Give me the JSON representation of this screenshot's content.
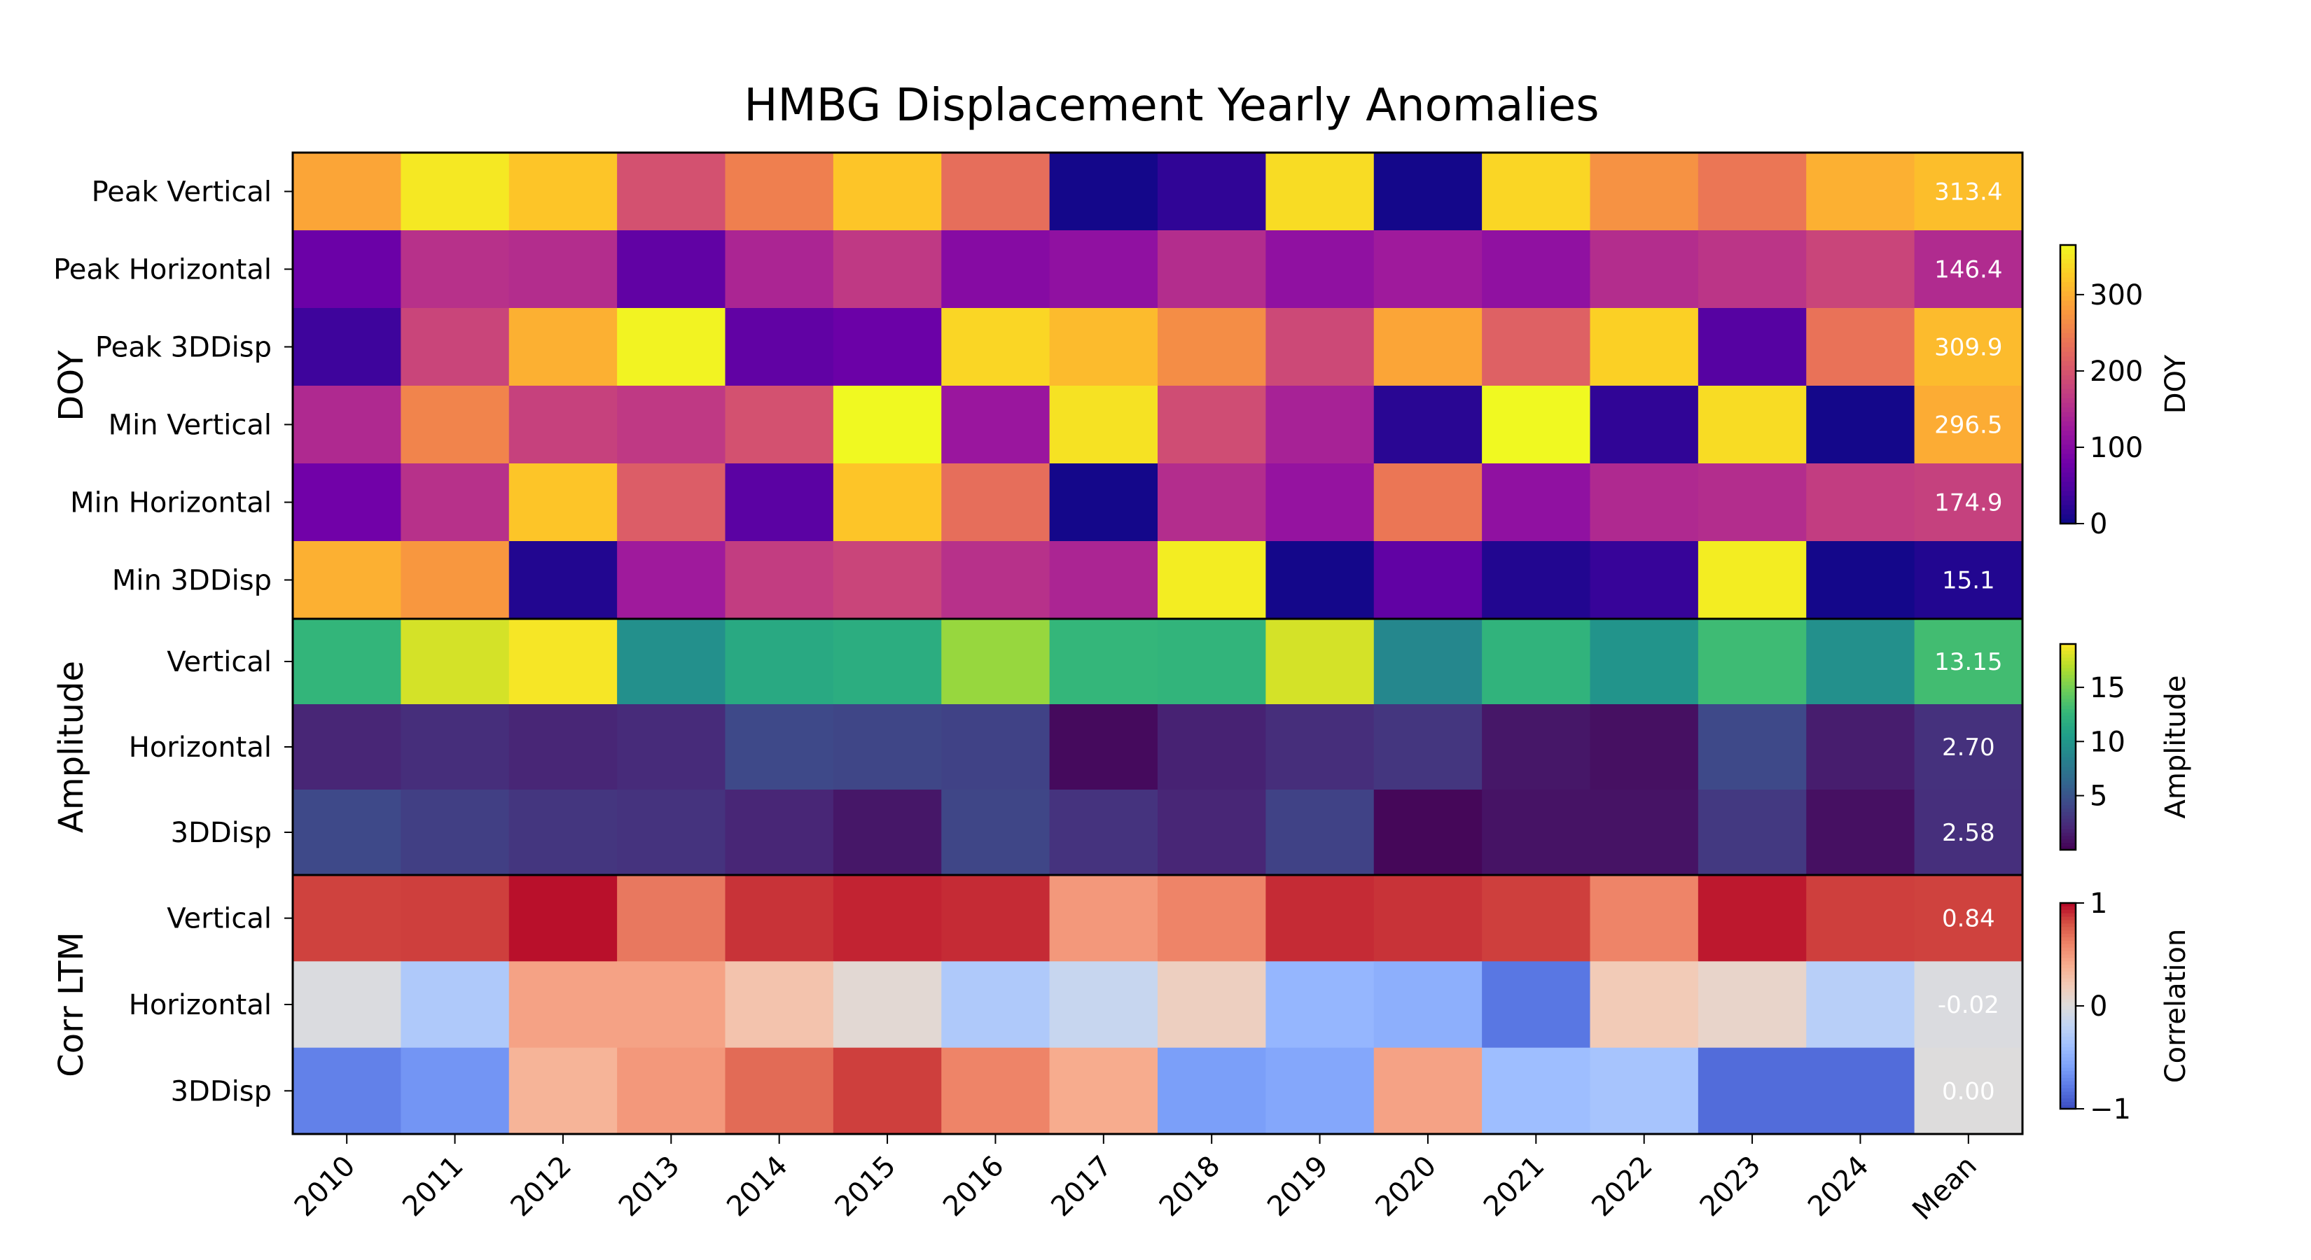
{
  "chart_data": {
    "type": "heatmap",
    "title": "HMBG Displacement Yearly Anomalies",
    "columns": [
      "2010",
      "2011",
      "2012",
      "2013",
      "2014",
      "2015",
      "2016",
      "2017",
      "2018",
      "2019",
      "2020",
      "2021",
      "2022",
      "2023",
      "2024",
      "Mean"
    ],
    "blocks": [
      {
        "label": "DOY",
        "colormap": "plasma",
        "range": [
          0,
          365
        ],
        "colorbar_label": "DOY",
        "colorbar_ticks": [
          "0",
          "100",
          "200",
          "300"
        ],
        "colorbar_tick_values": [
          0,
          100,
          200,
          300
        ],
        "rows": [
          {
            "label": "Peak Vertical",
            "values": [
              290,
              350,
              320,
              195,
              250,
              320,
              230,
              5,
              25,
              340,
              5,
              335,
              270,
              240,
              300,
              313.4
            ],
            "mean_text": "313.4"
          },
          {
            "label": "Peak Horizontal",
            "values": [
              75,
              155,
              150,
              65,
              140,
              165,
              100,
              110,
              150,
              110,
              125,
              110,
              150,
              160,
              180,
              146.4
            ],
            "mean_text": "146.4"
          },
          {
            "label": "Peak 3DDisp",
            "values": [
              35,
              180,
              300,
              360,
              65,
              75,
              335,
              310,
              265,
              185,
              290,
              215,
              330,
              55,
              235,
              309.9
            ],
            "mean_text": "309.9"
          },
          {
            "label": "Min Vertical",
            "values": [
              145,
              255,
              175,
              165,
              195,
              365,
              120,
              345,
              190,
              135,
              20,
              365,
              25,
              340,
              5,
              296.5
            ],
            "mean_text": "296.5"
          },
          {
            "label": "Min Horizontal",
            "values": [
              80,
              155,
              320,
              210,
              60,
              320,
              230,
              5,
              150,
              115,
              240,
              110,
              145,
              150,
              170,
              174.9
            ],
            "mean_text": "174.9"
          },
          {
            "label": "Min 3DDisp",
            "values": [
              300,
              275,
              15,
              125,
              170,
              180,
              155,
              140,
              355,
              5,
              65,
              15,
              30,
              355,
              5,
              15.1
            ],
            "mean_text": "15.1"
          }
        ]
      },
      {
        "label": "Amplitude",
        "colormap": "viridis",
        "range": [
          0,
          19
        ],
        "colorbar_label": "Amplitude",
        "colorbar_ticks": [
          "5",
          "10",
          "15"
        ],
        "colorbar_tick_values": [
          5,
          10,
          15
        ],
        "rows": [
          {
            "label": "Vertical",
            "values": [
              12.5,
              17.8,
              18.8,
              9.5,
              11.5,
              11.8,
              16.0,
              12.6,
              12.4,
              17.8,
              8.8,
              12.3,
              9.8,
              13.0,
              9.5,
              13.15
            ],
            "mean_text": "13.15"
          },
          {
            "label": "Horizontal",
            "values": [
              2.0,
              2.5,
              2.0,
              2.3,
              4.2,
              4.0,
              3.8,
              0.5,
              1.8,
              2.5,
              3.0,
              1.2,
              0.8,
              4.2,
              1.5,
              2.7
            ],
            "mean_text": "2.70"
          },
          {
            "label": "3DDisp",
            "values": [
              4.2,
              3.6,
              3.0,
              2.8,
              2.0,
              1.2,
              4.0,
              2.8,
              2.0,
              3.8,
              0.3,
              1.0,
              1.0,
              3.2,
              0.8,
              2.58
            ],
            "mean_text": "2.58"
          }
        ]
      },
      {
        "label": "Corr LTM",
        "colormap": "coolwarm",
        "range": [
          -1,
          1
        ],
        "colorbar_label": "Correlation",
        "colorbar_ticks": [
          "−1",
          "0",
          "1"
        ],
        "colorbar_tick_values": [
          -1,
          0,
          1
        ],
        "rows": [
          {
            "label": "Vertical",
            "values": [
              0.84,
              0.85,
              0.97,
              0.65,
              0.88,
              0.92,
              0.9,
              0.5,
              0.6,
              0.9,
              0.88,
              0.85,
              0.6,
              0.95,
              0.85,
              0.84
            ],
            "mean_text": "0.84"
          },
          {
            "label": "Horizontal",
            "values": [
              -0.02,
              -0.3,
              0.45,
              0.45,
              0.25,
              0.05,
              -0.3,
              -0.15,
              0.15,
              -0.45,
              -0.5,
              -0.8,
              0.2,
              0.1,
              -0.25,
              -0.02
            ],
            "mean_text": "-0.02"
          },
          {
            "label": "3DDisp",
            "values": [
              -0.75,
              -0.65,
              0.35,
              0.5,
              0.7,
              0.85,
              0.6,
              0.4,
              -0.6,
              -0.55,
              0.45,
              -0.4,
              -0.35,
              -0.85,
              -0.85,
              0.0
            ],
            "mean_text": "0.00"
          }
        ]
      }
    ]
  }
}
